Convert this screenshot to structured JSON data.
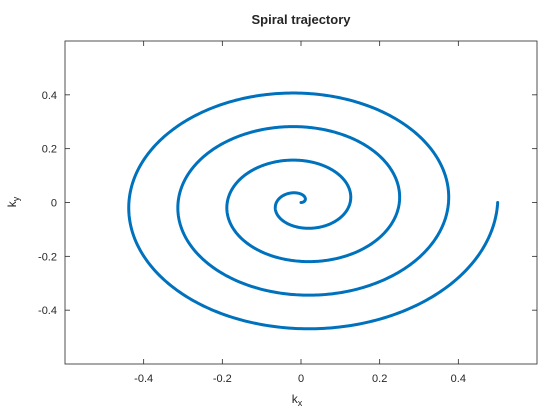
{
  "chart_data": {
    "type": "line",
    "title": "Spiral trajectory",
    "xlabel": {
      "base": "k",
      "sub": "x"
    },
    "ylabel": {
      "base": "k",
      "sub": "y"
    },
    "xlim": [
      -0.6,
      0.6
    ],
    "ylim": [
      -0.6,
      0.6
    ],
    "xticks": [
      -0.4,
      -0.2,
      0,
      0.2,
      0.4
    ],
    "yticks": [
      -0.4,
      -0.2,
      0,
      0.2,
      0.4
    ],
    "xtick_labels": [
      "-0.4",
      "-0.2",
      "0",
      "0.2",
      "0.4"
    ],
    "ytick_labels": [
      "-0.4",
      "-0.2",
      "0",
      "0.2",
      "0.4"
    ],
    "grid": false,
    "legend": "none",
    "series": [
      {
        "color": "#0072BD",
        "curve": "archimedean spiral",
        "turns": 4,
        "end_radius": 0.5,
        "end_point": [
          0.5,
          0
        ]
      }
    ]
  }
}
